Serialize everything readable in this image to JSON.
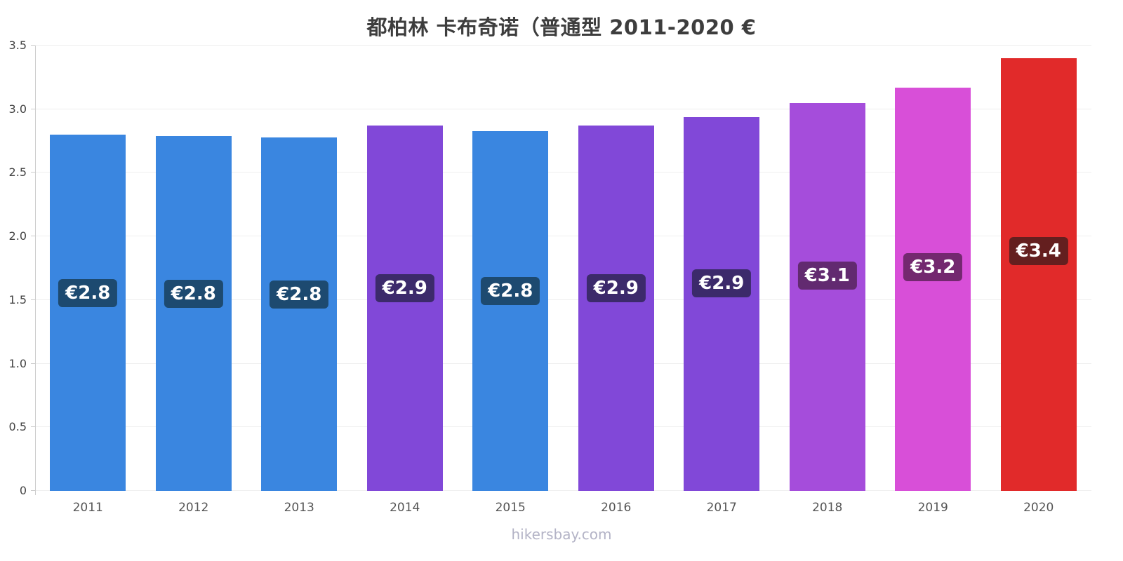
{
  "title": "都柏林 卡布奇诺（普通型 2011-2020 €",
  "footer": "hikersbay.com",
  "chart_data": {
    "type": "bar",
    "title": "都柏林 卡布奇诺（普通型 2011-2020 €",
    "xlabel": "",
    "ylabel": "",
    "categories": [
      "2011",
      "2012",
      "2013",
      "2014",
      "2015",
      "2016",
      "2017",
      "2018",
      "2019",
      "2020"
    ],
    "values": [
      2.8,
      2.79,
      2.78,
      2.87,
      2.83,
      2.87,
      2.94,
      3.05,
      3.17,
      3.4
    ],
    "labels": [
      "€2.8",
      "€2.8",
      "€2.8",
      "€2.9",
      "€2.8",
      "€2.9",
      "€2.9",
      "€3.1",
      "€3.2",
      "€3.4"
    ],
    "bar_colors": [
      "#3a86e0",
      "#3a86e0",
      "#3a86e0",
      "#8148d8",
      "#3a86e0",
      "#8148d8",
      "#8148d8",
      "#a54ddb",
      "#d84fd8",
      "#e12a2a"
    ],
    "label_bg_colors": [
      "#1d4a70",
      "#1d4a70",
      "#1d4a70",
      "#3c2a6b",
      "#1d4a70",
      "#3c2a6b",
      "#3c2a6b",
      "#622a70",
      "#73286f",
      "#641f1f"
    ],
    "ylim": [
      0,
      3.5
    ],
    "ytick_step": 0.5,
    "yticks": [
      {
        "value": 3.5,
        "label": "3.5"
      },
      {
        "value": 3.0,
        "label": "3.0"
      },
      {
        "value": 2.5,
        "label": "2.5"
      },
      {
        "value": 2.0,
        "label": "2.0"
      },
      {
        "value": 1.5,
        "label": "1.5"
      },
      {
        "value": 1.0,
        "label": "1.0"
      },
      {
        "value": 0.5,
        "label": "0.5"
      },
      {
        "value": 0,
        "label": "0"
      }
    ],
    "grid": true,
    "legend": false
  }
}
